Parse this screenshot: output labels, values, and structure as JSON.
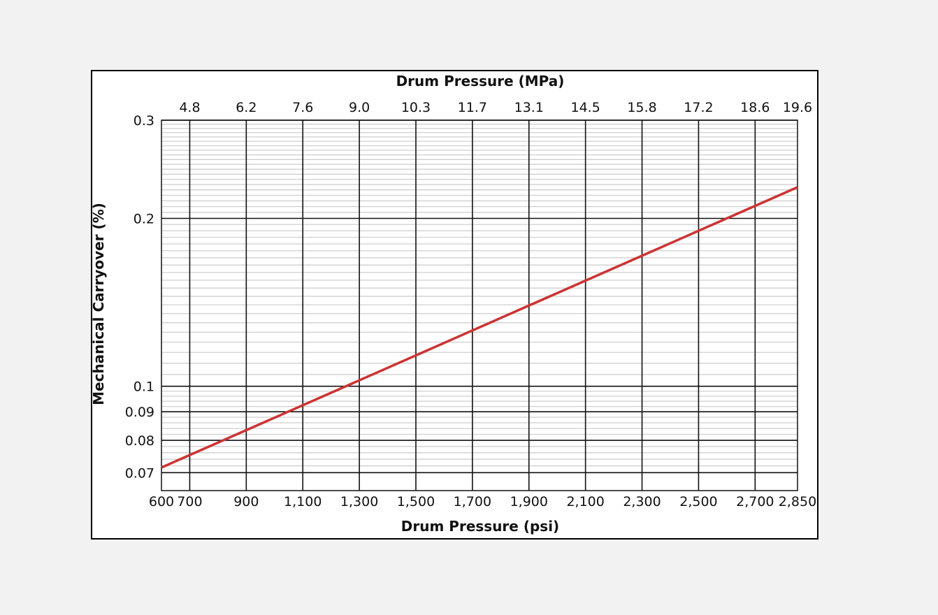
{
  "chart_data": {
    "type": "line",
    "title": "",
    "xlabel": "Drum Pressure (psi)",
    "x2label": "Drum Pressure (MPa)",
    "ylabel": "Mechanical Carryover (%)",
    "y_scale": "log",
    "xlim": [
      600,
      2850
    ],
    "ylim": [
      0.065,
      0.3
    ],
    "grid": true,
    "x_ticks": [
      {
        "value": 600,
        "label": "600"
      },
      {
        "value": 700,
        "label": "700"
      },
      {
        "value": 900,
        "label": "900"
      },
      {
        "value": 1100,
        "label": "1,100"
      },
      {
        "value": 1300,
        "label": "1,300"
      },
      {
        "value": 1500,
        "label": "1,500"
      },
      {
        "value": 1700,
        "label": "1,700"
      },
      {
        "value": 1900,
        "label": "1,900"
      },
      {
        "value": 2100,
        "label": "2,100"
      },
      {
        "value": 2300,
        "label": "2,300"
      },
      {
        "value": 2500,
        "label": "2,500"
      },
      {
        "value": 2700,
        "label": "2,700"
      },
      {
        "value": 2850,
        "label": "2,850"
      }
    ],
    "x2_ticks": [
      {
        "value": 700,
        "label": "4.8"
      },
      {
        "value": 900,
        "label": "6.2"
      },
      {
        "value": 1100,
        "label": "7.6"
      },
      {
        "value": 1300,
        "label": "9.0"
      },
      {
        "value": 1500,
        "label": "10.3"
      },
      {
        "value": 1700,
        "label": "11.7"
      },
      {
        "value": 1900,
        "label": "13.1"
      },
      {
        "value": 2100,
        "label": "14.5"
      },
      {
        "value": 2300,
        "label": "15.8"
      },
      {
        "value": 2500,
        "label": "17.2"
      },
      {
        "value": 2700,
        "label": "18.6"
      },
      {
        "value": 2850,
        "label": "19.6"
      }
    ],
    "y_ticks": [
      {
        "value": 0.07,
        "label": "0.07"
      },
      {
        "value": 0.08,
        "label": "0.08"
      },
      {
        "value": 0.09,
        "label": "0.09"
      },
      {
        "value": 0.1,
        "label": "0.1"
      },
      {
        "value": 0.2,
        "label": "0.2"
      },
      {
        "value": 0.3,
        "label": "0.3"
      }
    ],
    "y_minor_gridlines": [
      0.072,
      0.074,
      0.076,
      0.078,
      0.082,
      0.084,
      0.086,
      0.088,
      0.092,
      0.094,
      0.096,
      0.098,
      0.105,
      0.11,
      0.115,
      0.12,
      0.125,
      0.13,
      0.135,
      0.14,
      0.145,
      0.15,
      0.155,
      0.16,
      0.165,
      0.17,
      0.175,
      0.18,
      0.185,
      0.19,
      0.195,
      0.205,
      0.21,
      0.215,
      0.22,
      0.225,
      0.23,
      0.235,
      0.24,
      0.245,
      0.25,
      0.255,
      0.26,
      0.265,
      0.27,
      0.275,
      0.28,
      0.285,
      0.29,
      0.295
    ],
    "series": [
      {
        "x": [
          600,
          2850
        ],
        "y": [
          0.0715,
          0.2275
        ]
      }
    ],
    "colors": {
      "line": "#cc3333",
      "major_grid": "#111111",
      "minor_grid": "#cfcfcf",
      "background": "#ffffff",
      "page": "#f2f2f2"
    }
  }
}
